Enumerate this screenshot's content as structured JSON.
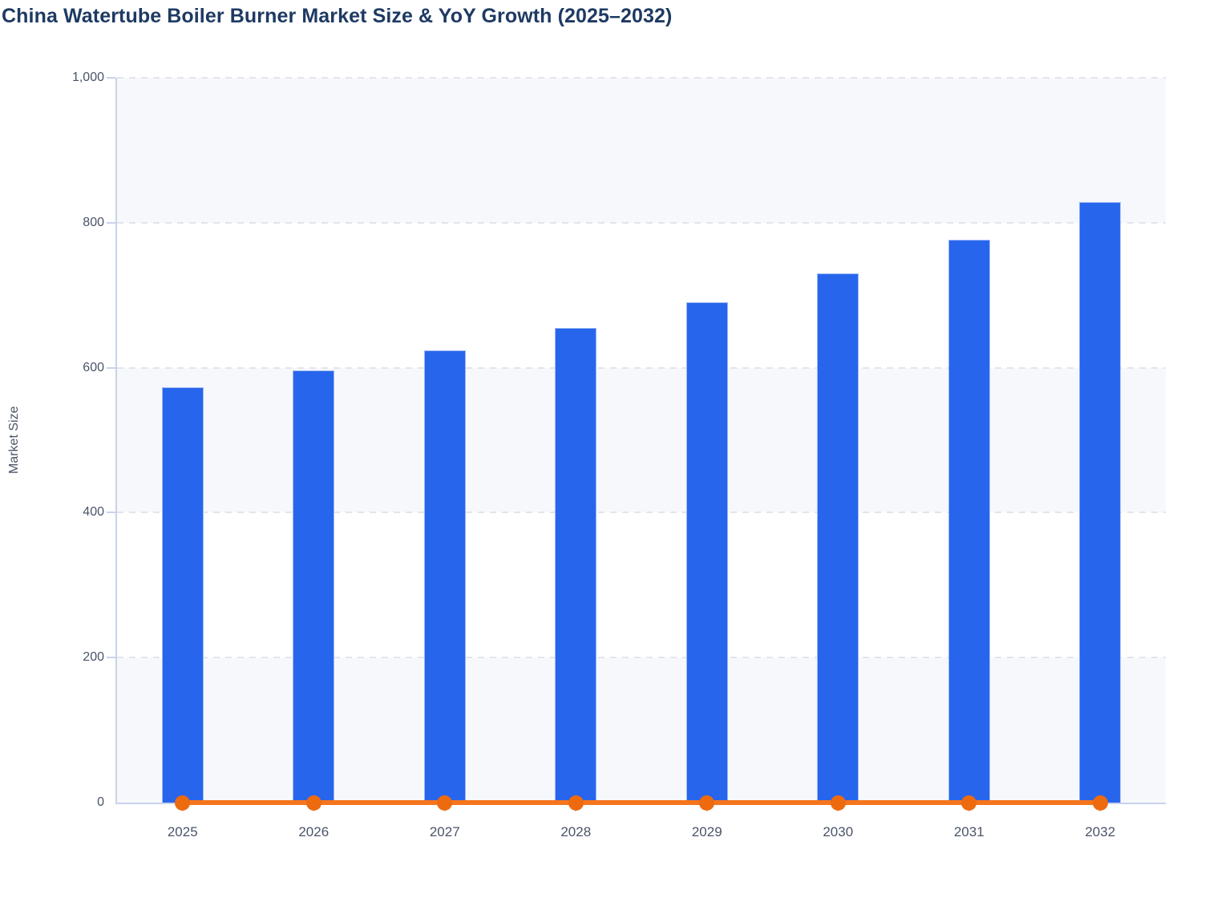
{
  "header": {
    "title": "China Watertube Boiler Burner Market Size & YoY Growth (2025–2032)"
  },
  "chart_data": {
    "type": "bar",
    "title": "China Watertube Boiler Burner Market Size & YoY Growth (2025–2032)",
    "categories": [
      "2025",
      "2026",
      "2027",
      "2028",
      "2029",
      "2030",
      "2031",
      "2032"
    ],
    "series": [
      {
        "name": "Market Size",
        "type": "bar",
        "values": [
          573,
          596,
          624,
          655,
          690,
          730,
          777,
          829
        ]
      },
      {
        "name": "YoY Growth",
        "type": "line",
        "values": [
          0,
          0,
          0,
          0,
          0,
          0,
          0,
          0
        ],
        "note": "line with circular markers rendered flat along the zero baseline"
      }
    ],
    "xlabel": "",
    "ylabel": "Market Size",
    "ylim": [
      0,
      1000
    ],
    "ytick_step": 200,
    "ytick_labels": [
      "0",
      "200",
      "400",
      "600",
      "800",
      "1,000"
    ],
    "grid": "horizontal dashed lines at every 200",
    "plot_bands": "alternating light bands: 800–1000, 400–600, 0–200 shaded",
    "legend": "none"
  },
  "colors": {
    "page_bg": "#ffffff",
    "title": "#1e3a63",
    "tick_text": "#4a5468",
    "bar": "#2765ec",
    "line": "#f5751d",
    "marker": "#ee6a0e",
    "grid": "#e3e5ea",
    "axis": "#c9d2ec",
    "band": "#f7f8fb"
  }
}
